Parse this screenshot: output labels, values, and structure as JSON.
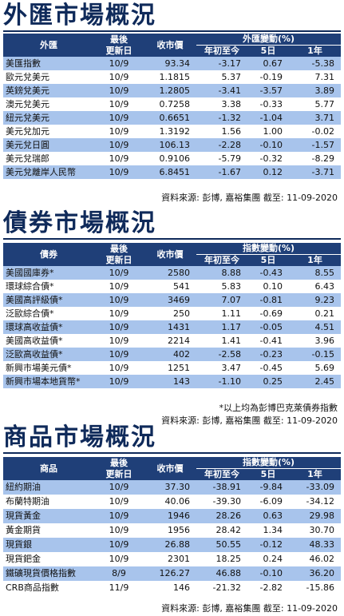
{
  "fx": {
    "title": "外匯市場概況",
    "headers": {
      "name": "外匯",
      "last_update": "最後\n更新日",
      "close": "收市價",
      "change_group": "外匯變動(%)",
      "ytd": "年初至今",
      "d5": "5日",
      "y1": "1年"
    },
    "rows": [
      {
        "name": "美匯指數",
        "date": "10/9",
        "close": "93.34",
        "ytd": "-3.17",
        "d5": "0.67",
        "y1": "-5.38"
      },
      {
        "name": "歐元兌美元",
        "date": "10/9",
        "close": "1.1815",
        "ytd": "5.37",
        "d5": "-0.19",
        "y1": "7.31"
      },
      {
        "name": "英鎊兌美元",
        "date": "10/9",
        "close": "1.2805",
        "ytd": "-3.41",
        "d5": "-3.57",
        "y1": "3.89"
      },
      {
        "name": "澳元兌美元",
        "date": "10/9",
        "close": "0.7258",
        "ytd": "3.38",
        "d5": "-0.33",
        "y1": "5.77"
      },
      {
        "name": "紐元兌美元",
        "date": "10/9",
        "close": "0.6651",
        "ytd": "-1.32",
        "d5": "-1.04",
        "y1": "3.71"
      },
      {
        "name": "美元兌加元",
        "date": "10/9",
        "close": "1.3192",
        "ytd": "1.56",
        "d5": "1.00",
        "y1": "-0.02"
      },
      {
        "name": "美元兌日圓",
        "date": "10/9",
        "close": "106.13",
        "ytd": "-2.28",
        "d5": "-0.10",
        "y1": "-1.57"
      },
      {
        "name": "美元兌瑞郎",
        "date": "10/9",
        "close": "0.9106",
        "ytd": "-5.79",
        "d5": "-0.32",
        "y1": "-8.29"
      },
      {
        "name": "美元兌離岸人民幣",
        "date": "10/9",
        "close": "6.8451",
        "ytd": "-1.67",
        "d5": "0.12",
        "y1": "-3.71"
      }
    ],
    "source": "資料來源: 彭博, 嘉裕集團 截至: 11-09-2020"
  },
  "bonds": {
    "title": "債券市場概況",
    "headers": {
      "name": "債券",
      "last_update": "最後\n更新日",
      "close": "收市價",
      "change_group": "指數變動(%)",
      "ytd": "年初至今",
      "d5": "5日",
      "y1": "1年"
    },
    "rows": [
      {
        "name": "美國國庫券*",
        "date": "10/9",
        "close": "2580",
        "ytd": "8.88",
        "d5": "-0.43",
        "y1": "8.55"
      },
      {
        "name": "環球綜合債*",
        "date": "10/9",
        "close": "541",
        "ytd": "5.83",
        "d5": "0.10",
        "y1": "6.43"
      },
      {
        "name": "美國高評級債*",
        "date": "10/9",
        "close": "3469",
        "ytd": "7.07",
        "d5": "-0.81",
        "y1": "9.23"
      },
      {
        "name": "泛歐綜合債*",
        "date": "10/9",
        "close": "250",
        "ytd": "1.11",
        "d5": "-0.69",
        "y1": "0.21"
      },
      {
        "name": "環球高收益債*",
        "date": "10/9",
        "close": "1431",
        "ytd": "1.17",
        "d5": "-0.05",
        "y1": "4.51"
      },
      {
        "name": "美國高收益債*",
        "date": "10/9",
        "close": "2214",
        "ytd": "1.41",
        "d5": "-0.41",
        "y1": "3.96"
      },
      {
        "name": "泛歐高收益債*",
        "date": "10/9",
        "close": "402",
        "ytd": "-2.58",
        "d5": "-0.23",
        "y1": "-0.15"
      },
      {
        "name": "新興市場美元債*",
        "date": "10/9",
        "close": "1251",
        "ytd": "3.47",
        "d5": "-0.45",
        "y1": "5.69"
      },
      {
        "name": "新興市場本地貨幣*",
        "date": "10/9",
        "close": "143",
        "ytd": "-1.10",
        "d5": "0.25",
        "y1": "2.45"
      }
    ],
    "note": "*以上均為彭博巴克萊債券指數",
    "source": "資料來源: 彭博, 嘉裕集團 截至: 11-09-2020"
  },
  "commodities": {
    "title": "商品市場概況",
    "headers": {
      "name": "商品",
      "last_update": "最後\n更新日",
      "close": "收市價",
      "change_group": "指數變動(%)",
      "ytd": "年初至今",
      "d5": "5日",
      "y1": "1年"
    },
    "rows": [
      {
        "name": "紐約期油",
        "date": "10/9",
        "close": "37.30",
        "ytd": "-38.91",
        "d5": "-9.84",
        "y1": "-33.09"
      },
      {
        "name": "布蘭特期油",
        "date": "10/9",
        "close": "40.06",
        "ytd": "-39.30",
        "d5": "-6.09",
        "y1": "-34.12"
      },
      {
        "name": "現貨黃金",
        "date": "10/9",
        "close": "1946",
        "ytd": "28.26",
        "d5": "0.63",
        "y1": "29.98"
      },
      {
        "name": "黃金期貨",
        "date": "10/9",
        "close": "1956",
        "ytd": "28.42",
        "d5": "1.34",
        "y1": "30.70"
      },
      {
        "name": "現貨銀",
        "date": "10/9",
        "close": "26.88",
        "ytd": "50.55",
        "d5": "-0.12",
        "y1": "48.33"
      },
      {
        "name": "現貨鈀金",
        "date": "10/9",
        "close": "2301",
        "ytd": "18.25",
        "d5": "0.24",
        "y1": "46.02"
      },
      {
        "name": "鐵礦現貨價格指數",
        "date": "8/9",
        "close": "126.27",
        "ytd": "46.88",
        "d5": "-0.10",
        "y1": "36.20"
      },
      {
        "name": "CRB商品指數",
        "date": "11/9",
        "close": "146",
        "ytd": "-21.32",
        "d5": "-2.82",
        "y1": "-15.86"
      }
    ],
    "source": "資料來源: 彭博, 嘉裕集團 截至: 11-09-2020"
  },
  "colors": {
    "title": "#0f2a5a",
    "header_bg": "#1f3f78",
    "alt_row": "#a8c4ec"
  }
}
